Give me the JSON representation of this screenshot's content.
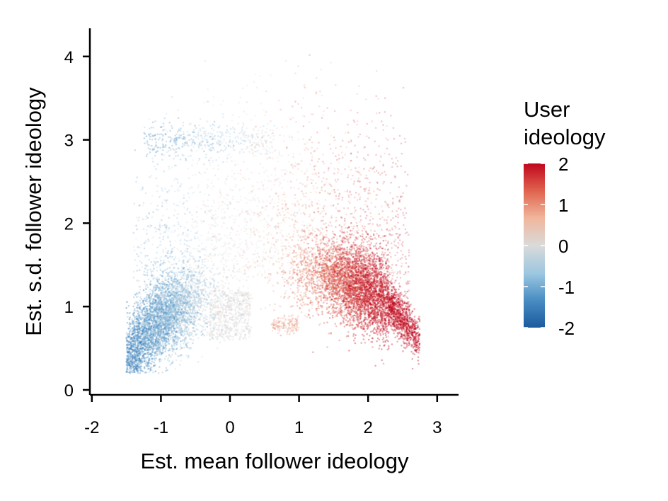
{
  "chart_data": {
    "type": "scatter",
    "title": "",
    "xlabel": "Est. mean follower ideology",
    "ylabel": "Est. s.d. follower ideology",
    "xlim": [
      -2.05,
      3.3
    ],
    "ylim": [
      -0.05,
      4.35
    ],
    "xticks": [
      -2,
      -1,
      0,
      1,
      2,
      3
    ],
    "yticks": [
      0,
      1,
      2,
      3,
      4
    ],
    "grid": false,
    "legend": {
      "title_lines": [
        "User",
        "ideology"
      ],
      "placement": "right",
      "ticks": [
        2,
        1,
        0,
        -1,
        -2
      ],
      "range": [
        -2,
        2
      ],
      "colors": [
        "#1a5a9e",
        "#4a8ec4",
        "#9cc7e0",
        "#dadada",
        "#f1b59b",
        "#e0654f",
        "#c0061d"
      ]
    },
    "density_ridge": {
      "description_x": [
        -1.45,
        -1.0,
        -0.5,
        0.0,
        0.5,
        1.0,
        1.5,
        2.0,
        2.4,
        2.7
      ],
      "mean_sd_y": [
        0.38,
        0.85,
        1.05,
        1.05,
        1.3,
        1.4,
        1.35,
        1.2,
        0.95,
        0.65
      ]
    },
    "clusters": [
      {
        "x_range": [
          -1.25,
          -0.25
        ],
        "y_center": 3.0,
        "color_value": -1.2
      },
      {
        "x_range": [
          0.6,
          1.0
        ],
        "y_center": 0.78,
        "color_value": 0.8
      }
    ]
  }
}
